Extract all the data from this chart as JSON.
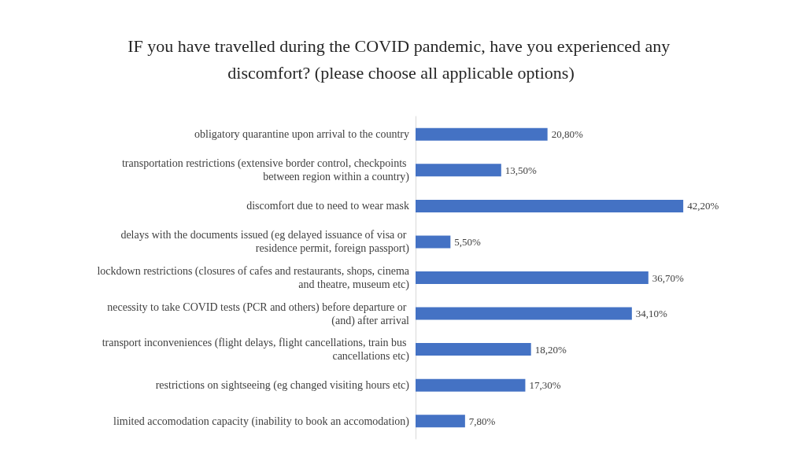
{
  "chart_data": {
    "type": "bar",
    "orientation": "horizontal",
    "title": "IF you have travelled during the COVID pandemic, have you experienced any discomfort? (please choose all applicable options)",
    "categories": [
      "obligatory quarantine upon arrival to the country",
      "transportation restrictions (extensive border control, checkpoints between region within a country)",
      "discomfort due to need to wear mask",
      "delays with the documents issued (eg delayed issuance of visa or residence permit, foreign passport)",
      "lockdown restrictions (closures of cafes and restaurants, shops, cinema and theatre, museum etc)",
      "necessity to take COVID tests (PCR and others) before departure or (and) after arrival",
      "transport inconveniences (flight delays, flight cancellations, train bus cancellations etc)",
      "restrictions on sightseeing (eg changed visiting hours etc)",
      "limited accomodation capacity (inability to book an accomodation)"
    ],
    "values": [
      20.8,
      13.5,
      42.2,
      5.5,
      36.7,
      34.1,
      18.2,
      17.3,
      7.8
    ],
    "value_labels": [
      "20,80%",
      "13,50%",
      "42,20%",
      "5,50%",
      "36,70%",
      "34,10%",
      "18,20%",
      "17,30%",
      "7,80%"
    ],
    "color": "#4472c4"
  }
}
